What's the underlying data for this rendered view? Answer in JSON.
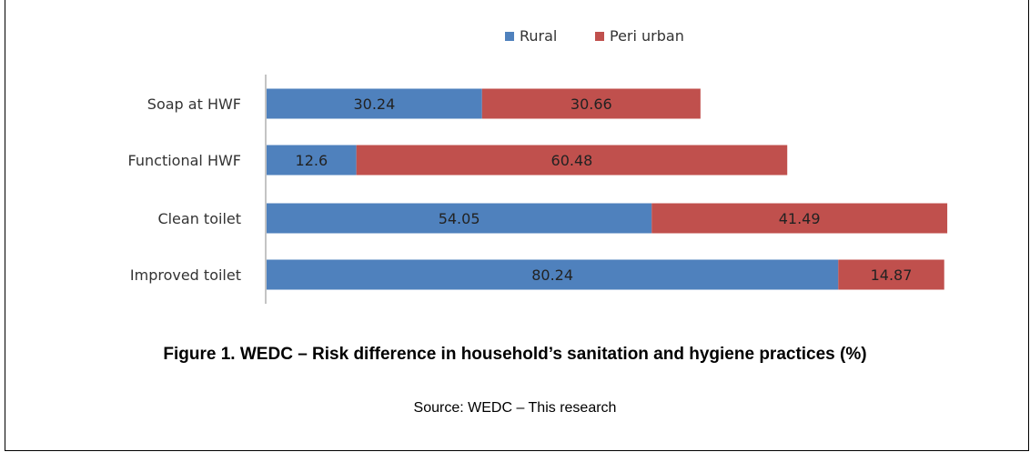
{
  "chart_data": {
    "type": "bar",
    "orientation": "horizontal",
    "stacked": true,
    "categories": [
      "Soap at HWF",
      "Functional HWF",
      "Clean toilet",
      "Improved toilet"
    ],
    "series": [
      {
        "name": "Rural",
        "color": "#4f81bd",
        "values": [
          30.24,
          12.6,
          54.05,
          80.24
        ]
      },
      {
        "name": "Peri urban",
        "color": "#c0504d",
        "values": [
          30.66,
          60.48,
          41.49,
          14.87
        ]
      }
    ],
    "data_labels": [
      [
        "30.24",
        "12.6",
        "54.05",
        "80.24"
      ],
      [
        "30.66",
        "60.48",
        "41.49",
        "14.87"
      ]
    ],
    "xlim": [
      0,
      100
    ],
    "legend_position": "top",
    "grid": false
  },
  "caption": "Figure 1. WEDC – Risk difference in household’s sanitation and hygiene practices (%)",
  "source": "Source: WEDC – This research"
}
